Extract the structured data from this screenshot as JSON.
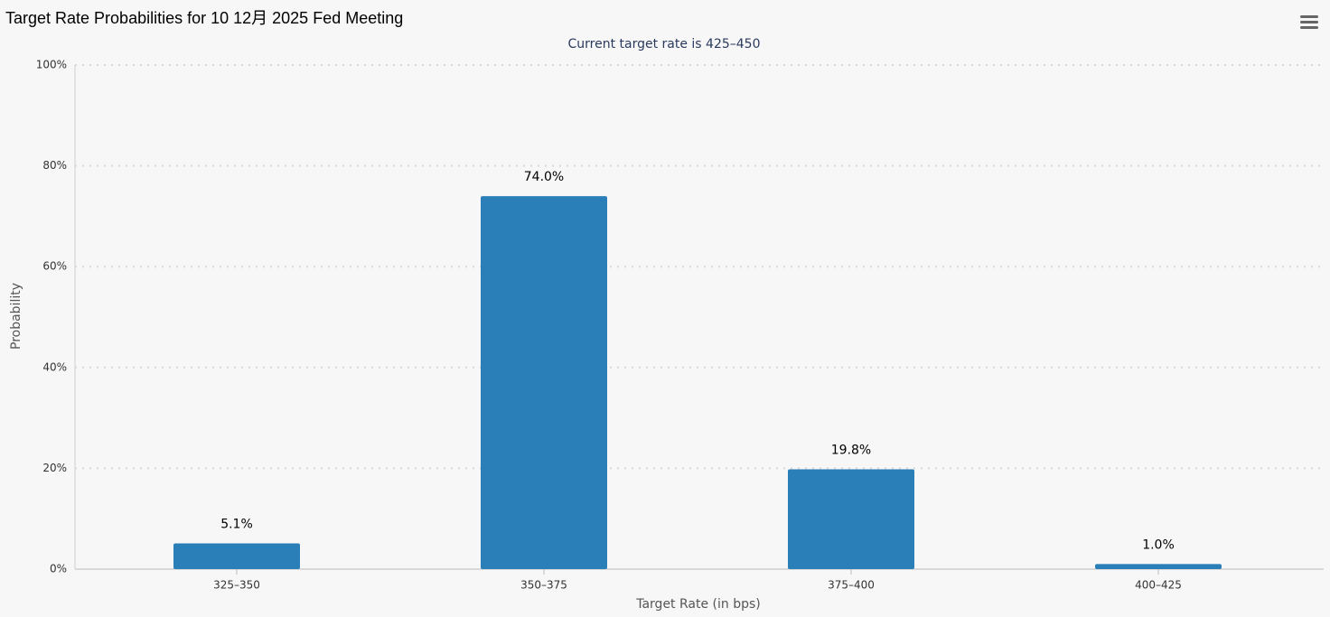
{
  "chart_data": {
    "type": "bar",
    "title": "Target Rate Probabilities for 10 12月 2025 Fed Meeting",
    "subtitle": "Current target rate is 425–450",
    "x_label": "Target Rate (in bps)",
    "y_label": "Probability",
    "categories": [
      "325–350",
      "350–375",
      "375–400",
      "400–425"
    ],
    "values": [
      5.1,
      74.0,
      19.8,
      1.0
    ],
    "value_labels": [
      "5.1%",
      "74.0%",
      "19.8%",
      "1.0%"
    ],
    "color": "#2b7fb8",
    "ylim": [
      0,
      100
    ],
    "yticks": [
      {
        "value": 0,
        "label": "0%"
      },
      {
        "value": 20,
        "label": "20%"
      },
      {
        "value": 40,
        "label": "40%"
      },
      {
        "value": 60,
        "label": "60%"
      },
      {
        "value": 80,
        "label": "80%"
      },
      {
        "value": 100,
        "label": "100%"
      }
    ],
    "grid": true
  }
}
